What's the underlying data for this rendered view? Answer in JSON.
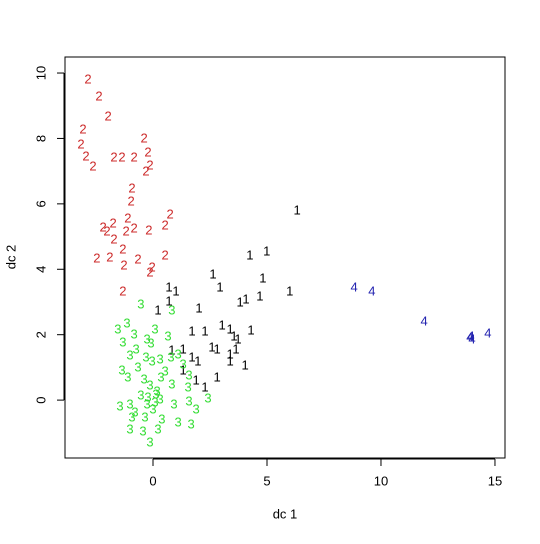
{
  "chart_data": {
    "type": "scatter",
    "x_label": "dc 1",
    "y_label": "dc 2",
    "xlim": [
      -3.86,
      15.44
    ],
    "ylim": [
      -1.77,
      10.49
    ],
    "xticks": [
      0,
      5,
      10,
      15
    ],
    "yticks": [
      0,
      2,
      4,
      6,
      8,
      10
    ],
    "series": [
      {
        "name": "1",
        "color": "#000000",
        "x": [
          6.32,
          4.99,
          4.25,
          4.82,
          6.0,
          2.63,
          0.7,
          1.01,
          2.94,
          3.82,
          4.08,
          4.69,
          2.02,
          0.22,
          0.7,
          1.71,
          2.28,
          3.03,
          3.38,
          4.3,
          3.55,
          3.73,
          0.83,
          1.32,
          2.59,
          2.81,
          3.38,
          3.64,
          1.71,
          1.97,
          3.38,
          4.04,
          2.28,
          2.81,
          1.32,
          1.89
        ],
        "y": [
          5.78,
          4.53,
          4.4,
          3.7,
          3.3,
          3.82,
          3.43,
          3.3,
          3.43,
          2.97,
          3.06,
          3.15,
          2.78,
          2.72,
          3.0,
          2.08,
          2.08,
          2.26,
          2.14,
          2.11,
          1.93,
          1.83,
          1.5,
          1.53,
          1.59,
          1.53,
          1.38,
          1.53,
          1.28,
          1.16,
          1.16,
          1.04,
          0.37,
          0.67,
          0.89,
          0.58
        ]
      },
      {
        "name": "2",
        "color": "#cc2a2a",
        "x": [
          -2.85,
          -2.37,
          -1.97,
          -3.07,
          -0.39,
          -3.16,
          -2.94,
          -2.63,
          -1.71,
          -1.36,
          -0.83,
          -0.22,
          -0.13,
          -0.31,
          -0.92,
          -0.96,
          0.75,
          0.53,
          -2.19,
          -2.02,
          -1.75,
          -1.1,
          -1.18,
          -0.83,
          -0.18,
          -1.71,
          -1.32,
          -2.46,
          -1.89,
          -0.66,
          -1.27,
          -0.04,
          -0.13,
          0.53,
          -1.32
        ],
        "y": [
          9.79,
          9.27,
          8.65,
          8.26,
          7.98,
          7.8,
          7.43,
          7.13,
          7.4,
          7.4,
          7.4,
          7.55,
          7.16,
          6.97,
          6.45,
          6.06,
          5.66,
          5.32,
          5.26,
          5.14,
          5.38,
          5.54,
          5.14,
          5.23,
          5.17,
          4.89,
          4.59,
          4.31,
          4.34,
          4.28,
          4.1,
          4.04,
          3.88,
          4.4,
          3.3
        ]
      },
      {
        "name": "3",
        "color": "#33dd33",
        "x": [
          -0.53,
          0.83,
          -1.54,
          -1.14,
          0.09,
          -1.32,
          -0.83,
          -0.26,
          -0.09,
          0.66,
          -1.01,
          -0.31,
          0.31,
          1.1,
          1.32,
          -1.36,
          -0.66,
          -1.1,
          0.53,
          1.58,
          0.83,
          1.54,
          -0.39,
          -0.13,
          0.18,
          -0.22,
          0.09,
          -0.53,
          0.31,
          -0.26,
          -1.45,
          -1.01,
          0.92,
          1.58,
          2.41,
          1.89,
          -0.79,
          -0.35,
          0.39,
          1.1,
          1.67,
          -1.01,
          -0.44,
          0.22,
          -0.92,
          -0.13,
          0.79,
          -0.74,
          -0.04,
          0.35,
          0.0,
          0.13
        ],
        "y": [
          2.9,
          2.72,
          2.14,
          2.32,
          2.14,
          1.74,
          1.99,
          1.83,
          1.71,
          1.93,
          1.35,
          1.28,
          1.22,
          1.38,
          1.07,
          0.89,
          0.98,
          0.67,
          0.86,
          0.73,
          0.46,
          0.37,
          0.61,
          0.43,
          0.24,
          0.06,
          -0.09,
          0.12,
          0.0,
          -0.15,
          -0.21,
          -0.15,
          -0.15,
          -0.06,
          0.03,
          -0.31,
          -0.4,
          -0.55,
          -0.61,
          -0.7,
          -0.76,
          -0.92,
          -0.98,
          -0.92,
          -0.55,
          -1.31,
          1.28,
          1.53,
          1.16,
          0.67,
          -0.31,
          0.15
        ]
      },
      {
        "name": "4",
        "color": "#2323b0",
        "x": [
          8.82,
          9.6,
          11.89,
          13.9,
          13.99,
          14.69,
          13.95
        ],
        "y": [
          3.43,
          3.3,
          2.39,
          1.9,
          1.83,
          2.02,
          1.93
        ]
      }
    ]
  }
}
